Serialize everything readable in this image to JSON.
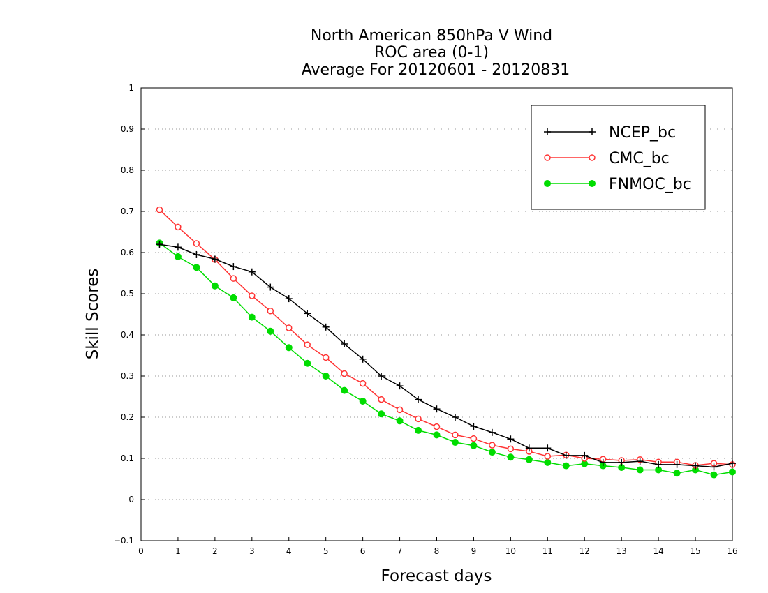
{
  "chart_data": {
    "type": "line",
    "title": [
      "North American 850hPa V Wind",
      "ROC area (0-1)",
      "Average For 20120601 - 20120831"
    ],
    "xlabel": "Forecast days",
    "ylabel": "Skill Scores",
    "xlim": [
      0,
      16
    ],
    "ylim": [
      -0.1,
      1
    ],
    "xticks": [
      0,
      1,
      2,
      3,
      4,
      5,
      6,
      7,
      8,
      9,
      10,
      11,
      12,
      13,
      14,
      15,
      16
    ],
    "xtick_labels": [
      "0",
      "1",
      "2",
      "3",
      "4",
      "5",
      "6",
      "7",
      "8",
      "9",
      "10",
      "11",
      "12",
      "13",
      "14",
      "15",
      "16"
    ],
    "yticks": [
      -0.1,
      0,
      0.1,
      0.2,
      0.3,
      0.4,
      0.5,
      0.6,
      0.7,
      0.8,
      0.9,
      1
    ],
    "ytick_labels": [
      "−0.1",
      "0",
      "0.1",
      "0.2",
      "0.3",
      "0.4",
      "0.5",
      "0.6",
      "0.7",
      "0.8",
      "0.9",
      "1"
    ],
    "grid": "horizontal-dotted",
    "legend_position": "top-right",
    "x": [
      0.5,
      1,
      1.5,
      2,
      2.5,
      3,
      3.5,
      4,
      4.5,
      5,
      5.5,
      6,
      6.5,
      7,
      7.5,
      8,
      8.5,
      9,
      9.5,
      10,
      10.5,
      11,
      11.5,
      12,
      12.5,
      13,
      13.5,
      14,
      14.5,
      15,
      15.5,
      16
    ],
    "series": [
      {
        "name": "NCEP_bc",
        "color": "#000000",
        "marker": "plus",
        "values": [
          0.62,
          0.613,
          0.595,
          0.584,
          0.566,
          0.553,
          0.516,
          0.488,
          0.452,
          0.419,
          0.378,
          0.341,
          0.3,
          0.276,
          0.243,
          0.22,
          0.2,
          0.178,
          0.163,
          0.147,
          0.125,
          0.125,
          0.107,
          0.107,
          0.09,
          0.09,
          0.093,
          0.085,
          0.085,
          0.082,
          0.079,
          0.088
        ]
      },
      {
        "name": "CMC_bc",
        "color": "#ff3333",
        "marker": "open-circle",
        "values": [
          0.704,
          0.662,
          0.622,
          0.583,
          0.537,
          0.495,
          0.458,
          0.417,
          0.376,
          0.345,
          0.306,
          0.282,
          0.243,
          0.218,
          0.196,
          0.177,
          0.157,
          0.148,
          0.132,
          0.123,
          0.117,
          0.105,
          0.108,
          0.1,
          0.098,
          0.095,
          0.097,
          0.091,
          0.091,
          0.083,
          0.088,
          0.085
        ]
      },
      {
        "name": "FNMOC_bc",
        "color": "#00dd00",
        "marker": "filled-circle",
        "values": [
          0.623,
          0.59,
          0.564,
          0.519,
          0.49,
          0.443,
          0.409,
          0.369,
          0.331,
          0.3,
          0.265,
          0.239,
          0.208,
          0.191,
          0.168,
          0.157,
          0.139,
          0.131,
          0.115,
          0.103,
          0.097,
          0.09,
          0.082,
          0.087,
          0.082,
          0.078,
          0.072,
          0.072,
          0.064,
          0.072,
          0.06,
          0.067
        ]
      }
    ]
  }
}
